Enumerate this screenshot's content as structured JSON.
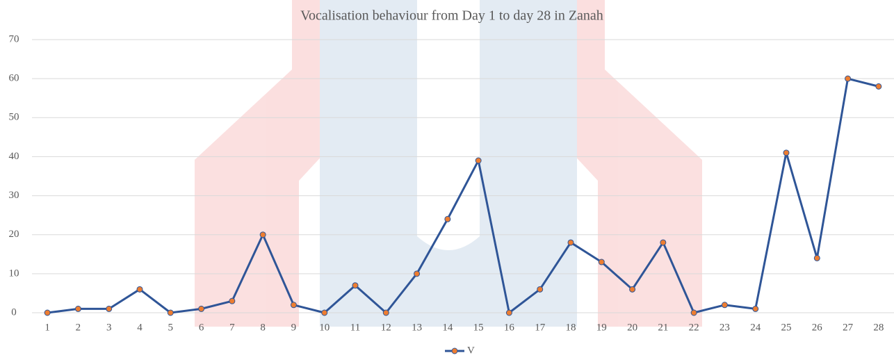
{
  "chart_data": {
    "type": "line",
    "title": "Vocalisation behaviour from Day 1 to day 28 in Zanah",
    "categories": [
      "1",
      "2",
      "3",
      "4",
      "5",
      "6",
      "7",
      "8",
      "9",
      "10",
      "11",
      "12",
      "13",
      "14",
      "15",
      "16",
      "17",
      "18",
      "19",
      "20",
      "21",
      "22",
      "23",
      "24",
      "25",
      "26",
      "27",
      "28"
    ],
    "series": [
      {
        "name": "V",
        "color": "#2f5597",
        "marker_color": "#ed7d31",
        "values": [
          0,
          1,
          1,
          6,
          0,
          1,
          3,
          20,
          2,
          0,
          7,
          0,
          10,
          24,
          39,
          0,
          6,
          18,
          13,
          6,
          18,
          0,
          2,
          1,
          41,
          14,
          60,
          58
        ]
      }
    ],
    "ylim": [
      0,
      70
    ],
    "yticks": [
      0,
      10,
      20,
      30,
      40,
      50,
      60,
      70
    ],
    "grid": true,
    "legend": "bottom"
  }
}
